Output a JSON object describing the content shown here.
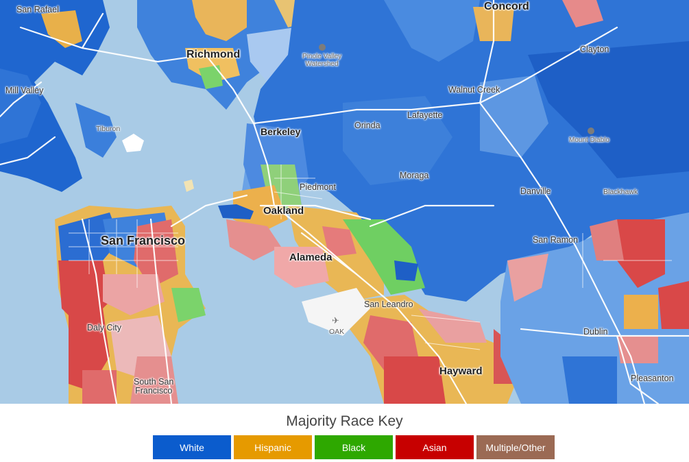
{
  "map": {
    "places": {
      "san_rafael": "San Rafael",
      "concord": "Concord",
      "richmond": "Richmond",
      "pinole": "Pinole Valley\nWatershed",
      "clayton": "Clayton",
      "mill_valley": "Mill Valley",
      "walnut_creek": "Walnut Creek",
      "lafayette": "Lafayette",
      "tiburon": "Tiburon",
      "orinda": "Orinda",
      "berkeley": "Berkeley",
      "mount_diablo": "Mount Diablo",
      "moraga": "Moraga",
      "piedmont": "Piedmont",
      "danville": "Danville",
      "blackhawk": "Blackhawk",
      "oakland": "Oakland",
      "san_francisco": "San Francisco",
      "san_ramon": "San Ramon",
      "alameda": "Alameda",
      "san_leandro": "San Leandro",
      "oak": "OAK",
      "daly_city": "Daly City",
      "dublin": "Dublin",
      "hayward": "Hayward",
      "south_sf": "South San\nFrancisco",
      "pleasanton": "Pleasanton"
    },
    "airport_icon": "airplane-icon",
    "park_icon": "tree-icon"
  },
  "legend": {
    "title": "Majority Race Key",
    "keys": [
      {
        "label": "White",
        "color": "#0b5ccd"
      },
      {
        "label": "Hispanic",
        "color": "#e69a00"
      },
      {
        "label": "Black",
        "color": "#2ea800"
      },
      {
        "label": "Asian",
        "color": "#c70000"
      },
      {
        "label": "Multiple/Other",
        "color": "#9b6a54"
      }
    ]
  }
}
